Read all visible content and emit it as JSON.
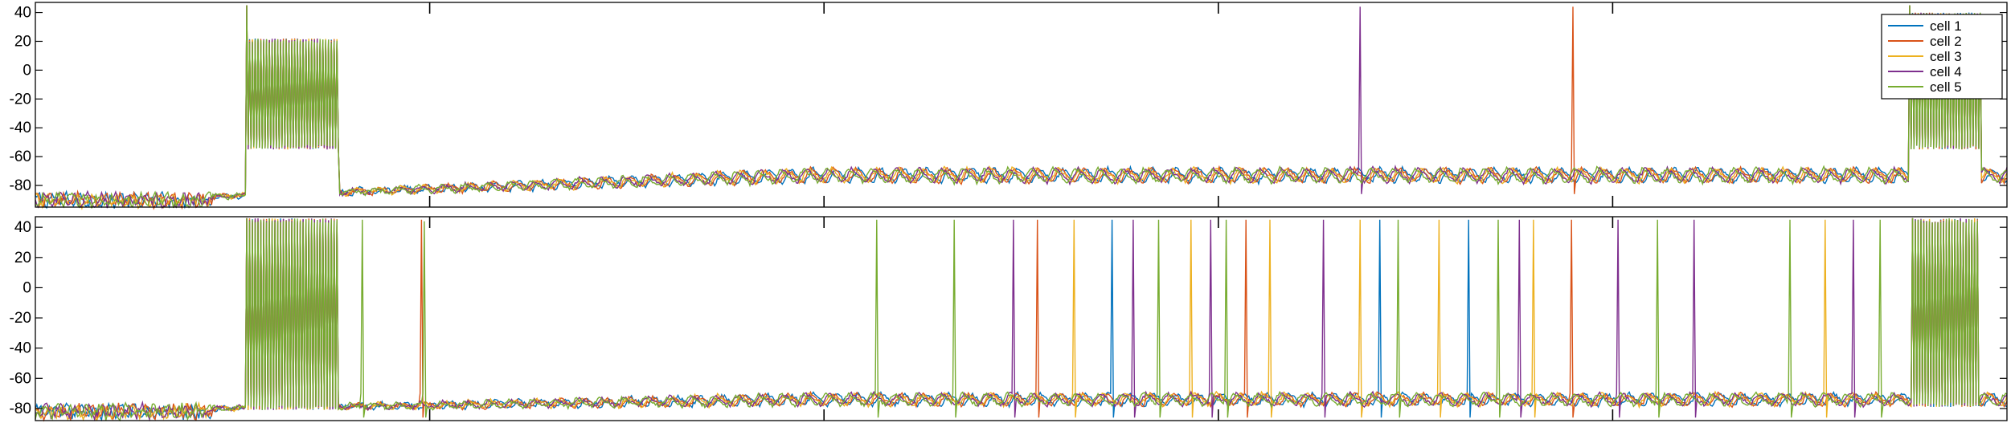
{
  "colors": {
    "cell1": "#0072BD",
    "cell2": "#D95319",
    "cell3": "#EDB120",
    "cell4": "#7E2F8E",
    "cell5": "#77AC30",
    "axis": "#000000",
    "background": "#ffffff"
  },
  "chart_data": [
    {
      "type": "line",
      "panel": "top",
      "title": "",
      "xlabel": "",
      "ylabel": "",
      "ylim": [
        -95,
        47
      ],
      "yticks": [
        40,
        20,
        0,
        -20,
        -40,
        -60,
        -80
      ],
      "ytick_labels": [
        "40",
        "20",
        "0",
        "-20",
        "-40",
        "-60",
        "-80"
      ],
      "x_tick_count": 5,
      "x_tick_labels_shown": false,
      "grid": false,
      "legend": {
        "placement": "top-right",
        "entries": [
          "cell 1",
          "cell 2",
          "cell 3",
          "cell 4",
          "cell 5"
        ]
      },
      "series": [
        {
          "name": "cell 1"
        },
        {
          "name": "cell 2"
        },
        {
          "name": "cell 3"
        },
        {
          "name": "cell 4"
        },
        {
          "name": "cell 5"
        }
      ],
      "events": [
        {
          "kind": "burst",
          "start": 0.107,
          "end": 0.154,
          "high": 22,
          "low": -52,
          "peak": 45,
          "series": "cell 5"
        },
        {
          "kind": "burst",
          "start": 0.95,
          "end": 0.987,
          "high": 40,
          "low": -52,
          "peak": 45,
          "series": "cell 5"
        },
        {
          "kind": "spike",
          "at": 0.672,
          "series": "cell 4",
          "peak": 44
        },
        {
          "kind": "spike",
          "at": 0.78,
          "series": "cell 2",
          "peak": 44
        }
      ],
      "baseline": {
        "rest_start": -88,
        "oscillation_trough": -78,
        "oscillation_peak": -68
      }
    },
    {
      "type": "line",
      "panel": "bottom",
      "title": "",
      "xlabel": "",
      "ylabel": "",
      "ylim": [
        -88,
        47
      ],
      "yticks": [
        40,
        20,
        0,
        -20,
        -40,
        -60,
        -80
      ],
      "ytick_labels": [
        "40",
        "20",
        "0",
        "-20",
        "-40",
        "-60",
        "-80"
      ],
      "x_tick_count": 5,
      "x_tick_labels_shown": false,
      "grid": false,
      "series": [
        {
          "name": "cell 1"
        },
        {
          "name": "cell 2"
        },
        {
          "name": "cell 3"
        },
        {
          "name": "cell 4"
        },
        {
          "name": "cell 5"
        }
      ],
      "events": [
        {
          "kind": "burst",
          "start": 0.107,
          "end": 0.154,
          "high": 46,
          "low": -78,
          "peak": 46,
          "series": "cell 5"
        },
        {
          "kind": "burst",
          "start": 0.952,
          "end": 0.986,
          "high": 46,
          "low": -76,
          "peak": 46,
          "series": "cell 5"
        },
        {
          "kind": "spike",
          "at": 0.166,
          "series": "cell 5",
          "peak": 45
        },
        {
          "kind": "spike",
          "at": 0.196,
          "series": "cell 2",
          "peak": 45
        },
        {
          "kind": "spike",
          "at": 0.197,
          "series": "cell 5",
          "peak": 44
        },
        {
          "kind": "spike",
          "at": 0.427,
          "series": "cell 5",
          "peak": 45
        },
        {
          "kind": "spike",
          "at": 0.466,
          "series": "cell 5",
          "peak": 45
        },
        {
          "kind": "spike",
          "at": 0.496,
          "series": "cell 4",
          "peak": 45
        },
        {
          "kind": "spike",
          "at": 0.508,
          "series": "cell 2",
          "peak": 45
        },
        {
          "kind": "spike",
          "at": 0.527,
          "series": "cell 3",
          "peak": 45
        },
        {
          "kind": "spike",
          "at": 0.546,
          "series": "cell 1",
          "peak": 45
        },
        {
          "kind": "spike",
          "at": 0.557,
          "series": "cell 4",
          "peak": 45
        },
        {
          "kind": "spike",
          "at": 0.57,
          "series": "cell 5",
          "peak": 45
        },
        {
          "kind": "spike",
          "at": 0.586,
          "series": "cell 3",
          "peak": 45
        },
        {
          "kind": "spike",
          "at": 0.596,
          "series": "cell 4",
          "peak": 45
        },
        {
          "kind": "spike",
          "at": 0.604,
          "series": "cell 5",
          "peak": 45
        },
        {
          "kind": "spike",
          "at": 0.614,
          "series": "cell 2",
          "peak": 45
        },
        {
          "kind": "spike",
          "at": 0.626,
          "series": "cell 3",
          "peak": 45
        },
        {
          "kind": "spike",
          "at": 0.653,
          "series": "cell 4",
          "peak": 45
        },
        {
          "kind": "spike",
          "at": 0.672,
          "series": "cell 3",
          "peak": 45
        },
        {
          "kind": "spike",
          "at": 0.682,
          "series": "cell 1",
          "peak": 45
        },
        {
          "kind": "spike",
          "at": 0.691,
          "series": "cell 5",
          "peak": 45
        },
        {
          "kind": "spike",
          "at": 0.712,
          "series": "cell 3",
          "peak": 45
        },
        {
          "kind": "spike",
          "at": 0.727,
          "series": "cell 1",
          "peak": 45
        },
        {
          "kind": "spike",
          "at": 0.742,
          "series": "cell 5",
          "peak": 45
        },
        {
          "kind": "spike",
          "at": 0.753,
          "series": "cell 4",
          "peak": 45
        },
        {
          "kind": "spike",
          "at": 0.76,
          "series": "cell 3",
          "peak": 45
        },
        {
          "kind": "spike",
          "at": 0.779,
          "series": "cell 2",
          "peak": 45
        },
        {
          "kind": "spike",
          "at": 0.803,
          "series": "cell 4",
          "peak": 45
        },
        {
          "kind": "spike",
          "at": 0.823,
          "series": "cell 5",
          "peak": 45
        },
        {
          "kind": "spike",
          "at": 0.841,
          "series": "cell 4",
          "peak": 45
        },
        {
          "kind": "spike",
          "at": 0.89,
          "series": "cell 5",
          "peak": 45
        },
        {
          "kind": "spike",
          "at": 0.908,
          "series": "cell 3",
          "peak": 45
        },
        {
          "kind": "spike",
          "at": 0.922,
          "series": "cell 4",
          "peak": 45
        },
        {
          "kind": "spike",
          "at": 0.936,
          "series": "cell 5",
          "peak": 45
        }
      ],
      "baseline": {
        "rest_start": -80,
        "oscillation_trough": -78,
        "oscillation_peak": -70
      }
    }
  ]
}
